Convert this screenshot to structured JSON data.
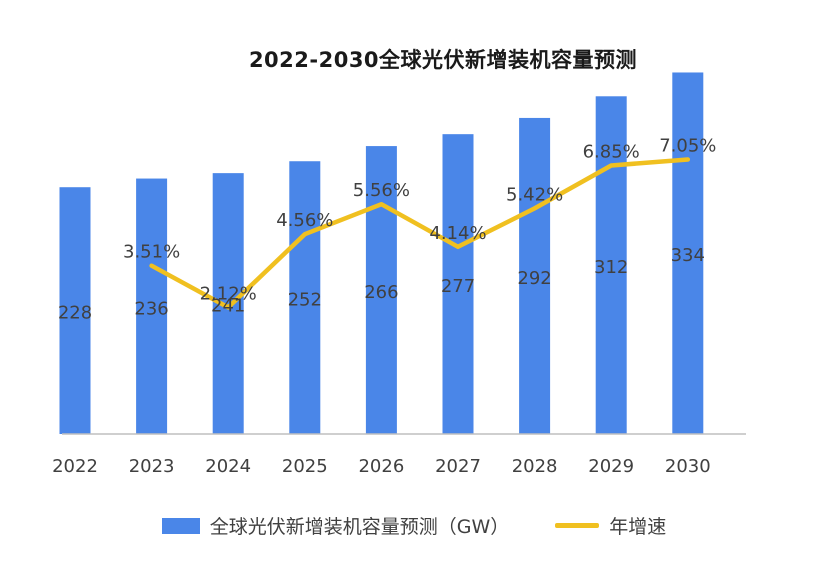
{
  "chart_data": {
    "type": "bar",
    "title": "2022-2030全球光伏新增装机容量预测",
    "categories": [
      "2022",
      "2023",
      "2024",
      "2025",
      "2026",
      "2027",
      "2028",
      "2029",
      "2030"
    ],
    "series": [
      {
        "name": "全球光伏新增装机容量预测（GW）",
        "type": "bar",
        "values": [
          228,
          236,
          241,
          252,
          266,
          277,
          292,
          312,
          334
        ],
        "labels": [
          "228",
          "236",
          "241",
          "252",
          "266",
          "277",
          "292",
          "312",
          "334"
        ]
      },
      {
        "name": "年增速",
        "type": "line",
        "values": [
          null,
          3.51,
          2.12,
          4.56,
          5.56,
          4.14,
          5.42,
          6.85,
          7.05
        ],
        "labels": [
          "",
          "3.51%",
          "2.12%",
          "4.56%",
          "5.56%",
          "4.14%",
          "5.42%",
          "6.85%",
          "7.05%"
        ]
      }
    ],
    "bar_ylim": [
      0,
      364
    ],
    "line_ylim": [
      -2.1,
      7.9
    ],
    "grid": false,
    "legend_position": "bottom",
    "colors": {
      "bar": "#4a86e8",
      "line": "#f0c020",
      "axis": "#bfbfbf",
      "label": "#404040"
    }
  }
}
